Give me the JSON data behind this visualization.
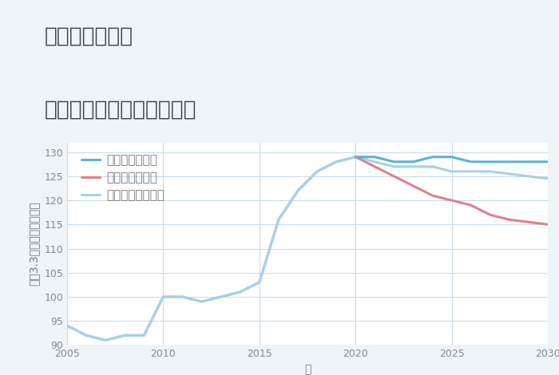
{
  "title_line1": "兵庫県御着駅の",
  "title_line2": "中古マンションの価格推移",
  "xlabel": "年",
  "ylabel": "坪（3.3㎡）単価（万円）",
  "xlim": [
    2005,
    2030
  ],
  "ylim": [
    90,
    132
  ],
  "yticks": [
    90,
    95,
    100,
    105,
    110,
    115,
    120,
    125,
    130
  ],
  "xticks": [
    2005,
    2010,
    2015,
    2020,
    2025,
    2030
  ],
  "background_color": "#eef4f8",
  "plot_bg_color": "#ffffff",
  "grid_color": "#c5d8ea",
  "good_color": "#5ab4d6",
  "bad_color": "#e08090",
  "normal_color": "#a8d0e6",
  "title_color": "#444444",
  "tick_color": "#888888",
  "label_color": "#777777",
  "good_label": "グッドシナリオ",
  "bad_label": "バッドシナリオ",
  "normal_label": "ノーマルシナリオ",
  "historical_years": [
    2005,
    2006,
    2007,
    2008,
    2009,
    2010,
    2011,
    2012,
    2013,
    2014,
    2015,
    2016,
    2017,
    2018,
    2019,
    2020
  ],
  "historical_values": [
    94,
    92,
    91,
    92,
    92,
    100,
    100,
    99,
    100,
    101,
    103,
    116,
    122,
    126,
    128,
    129
  ],
  "good_years": [
    2020,
    2021,
    2022,
    2023,
    2024,
    2025,
    2026,
    2027,
    2028,
    2029,
    2030
  ],
  "good_values": [
    129,
    129,
    128,
    128,
    129,
    129,
    128,
    128,
    128,
    128,
    128
  ],
  "bad_years": [
    2020,
    2021,
    2022,
    2023,
    2024,
    2025,
    2026,
    2027,
    2028,
    2029,
    2030
  ],
  "bad_values": [
    129,
    127,
    125,
    123,
    121,
    120,
    119,
    117,
    116,
    115.5,
    115
  ],
  "normal_years": [
    2020,
    2021,
    2022,
    2023,
    2024,
    2025,
    2026,
    2027,
    2028,
    2029,
    2030
  ],
  "normal_values": [
    129,
    128,
    127,
    127,
    127,
    126,
    126,
    126,
    125.5,
    125,
    124.5
  ],
  "title_fontsize": 19,
  "legend_fontsize": 11,
  "axis_fontsize": 10,
  "tick_fontsize": 9,
  "line_width": 2.2
}
